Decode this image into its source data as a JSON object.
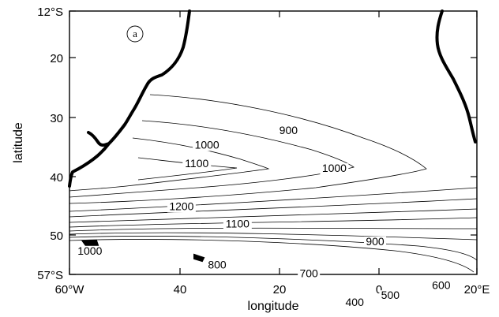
{
  "chart_data": {
    "type": "contour",
    "panel_label": "a",
    "xlabel": "longitude",
    "ylabel": "latitude",
    "x_ticks": [
      "60°W",
      "40",
      "20",
      "0",
      "20°E"
    ],
    "y_ticks": [
      "12°S",
      "20",
      "30",
      "40",
      "50",
      "57°S"
    ],
    "contour_labels": [
      {
        "text": "900",
        "lon": -17,
        "lat": -33
      },
      {
        "text": "1000",
        "lon": -33,
        "lat": -35.5
      },
      {
        "text": "1100",
        "lon": -35,
        "lat": -38.7
      },
      {
        "text": "1000",
        "lon": -8,
        "lat": -39.5
      },
      {
        "text": "1200",
        "lon": -38,
        "lat": -46
      },
      {
        "text": "1100",
        "lon": -27,
        "lat": -49
      },
      {
        "text": "900",
        "lon": 0,
        "lat": -52
      },
      {
        "text": "1000",
        "lon": -56,
        "lat": -53.6
      },
      {
        "text": "800",
        "lon": -31,
        "lat": -56
      },
      {
        "text": "700",
        "lon": -13,
        "lat": -57.5
      },
      {
        "text": "600",
        "lon": 13,
        "lat": -59.5
      },
      {
        "text": "500",
        "lon": 3,
        "lat": -61.2
      },
      {
        "text": "400",
        "lon": -4,
        "lat": -62.4
      }
    ]
  }
}
